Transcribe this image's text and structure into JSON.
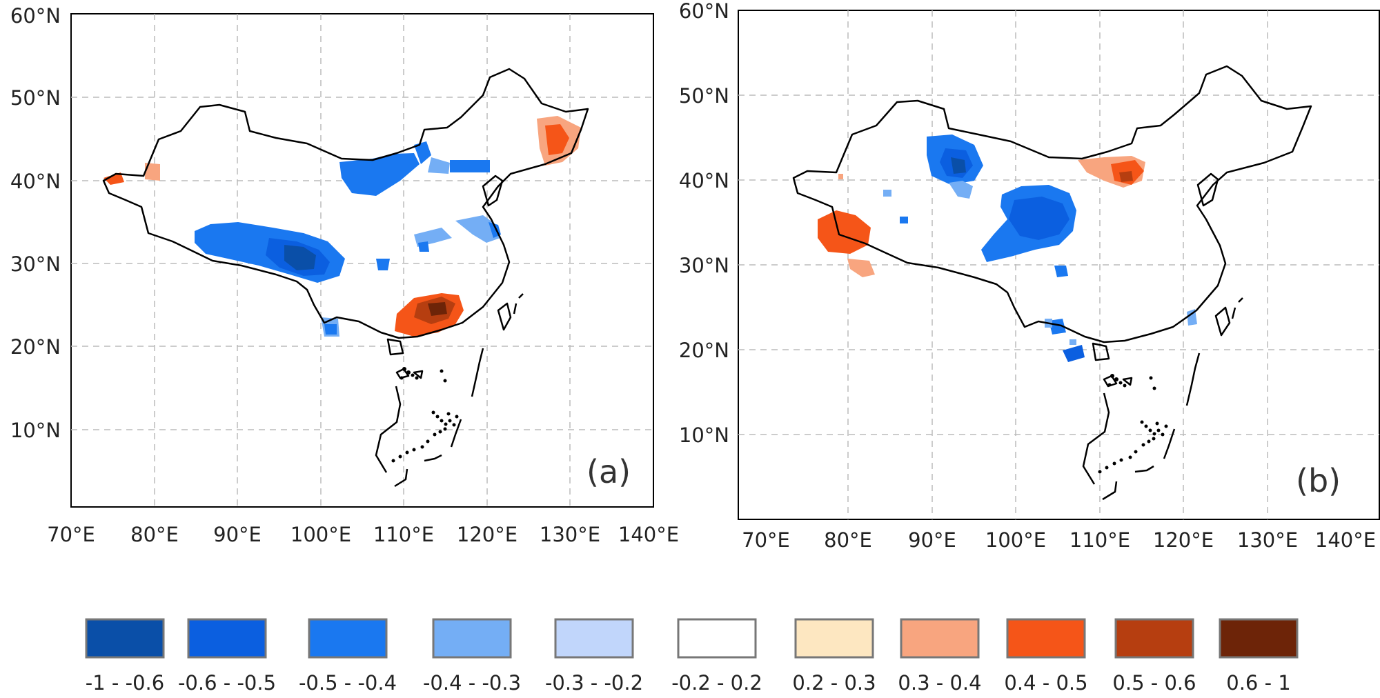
{
  "panels": [
    {
      "id": "a",
      "label": "(a)",
      "lat_labels": [
        "60°N",
        "50°N",
        "40°N",
        "30°N",
        "20°N",
        "10°N"
      ],
      "lon_labels": [
        "70°E",
        "80°E",
        "90°E",
        "100°E",
        "110°E",
        "120°E",
        "130°E",
        "140°E"
      ]
    },
    {
      "id": "b",
      "label": "(b)",
      "lat_labels": [
        "60°N",
        "50°N",
        "40°N",
        "30°N",
        "20°N",
        "10°N"
      ],
      "lon_labels": [
        "70°E",
        "80°E",
        "90°E",
        "100°E",
        "110°E",
        "120°E",
        "130°E",
        "140°E"
      ]
    }
  ],
  "legend": {
    "classes": [
      {
        "label": "-1 - -0.6",
        "color": "#0a4fa8"
      },
      {
        "label": "-0.6 - -0.5",
        "color": "#0b5fe0"
      },
      {
        "label": "-0.5 - -0.4",
        "color": "#1a78f0"
      },
      {
        "label": "-0.4 - -0.3",
        "color": "#74aef5"
      },
      {
        "label": "-0.3 - -0.2",
        "color": "#c1d6fb"
      },
      {
        "label": "-0.2 - 0.2",
        "color": "#ffffff"
      },
      {
        "label": "0.2 - 0.3",
        "color": "#fde7c1"
      },
      {
        "label": "0.3 - 0.4",
        "color": "#f8a57f"
      },
      {
        "label": "0.4 - 0.5",
        "color": "#f55518"
      },
      {
        "label": "0.5 - 0.6",
        "color": "#b63e10"
      },
      {
        "label": "0.6 - 1",
        "color": "#6d2408"
      }
    ]
  }
}
